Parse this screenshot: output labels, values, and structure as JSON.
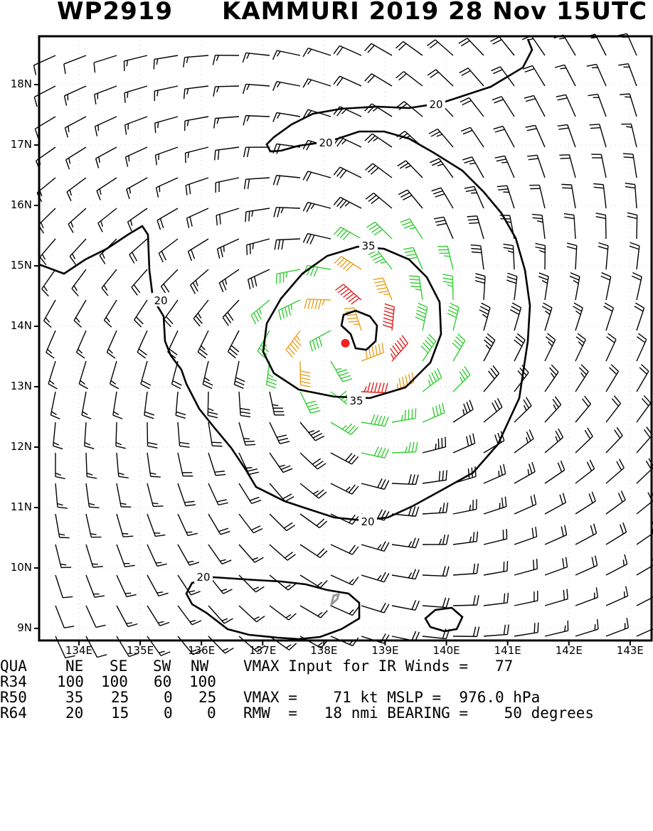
{
  "title": {
    "storm_id": "WP2919",
    "storm_desc": "KAMMURI 2019 28 Nov 15UTC"
  },
  "map": {
    "lat_labels": [
      "18N",
      "17N",
      "16N",
      "15N",
      "14N",
      "13N",
      "12N",
      "11N",
      "10N",
      "9N"
    ],
    "lon_labels": [
      "134E",
      "135E",
      "136E",
      "137E",
      "138E",
      "139E",
      "140E",
      "141E",
      "142E",
      "143E"
    ],
    "lat_range": [
      8.8,
      18.8
    ],
    "lon_range": [
      133.35,
      143.35
    ],
    "center": {
      "lat": 13.72,
      "lon": 138.35
    },
    "contour_labels": [
      "20",
      "20",
      "20",
      "35",
      "35",
      "20",
      "20"
    ],
    "colors": {
      "below_34kt": "#000000",
      "gale_34kt": "#33cc33",
      "storm_50kt": "#e8a020",
      "hurricane_64kt": "#e02020",
      "center": "#ee2222"
    }
  },
  "info": {
    "header": [
      "QUA",
      "NE",
      "SE",
      "SW",
      "NW"
    ],
    "r34": [
      "R34",
      "100",
      "100",
      "60",
      "100"
    ],
    "r50": [
      "R50",
      "35",
      "25",
      "0",
      "25"
    ],
    "r64": [
      "R64",
      "20",
      "15",
      "0",
      "0"
    ],
    "vmax_input_line": "VMAX Input for IR Winds =   77",
    "vmax_line": "VMAX =    71 kt MSLP =  976.0 hPa",
    "rmw_line": "RMW  =   18 nmi BEARING =    50 degrees"
  }
}
